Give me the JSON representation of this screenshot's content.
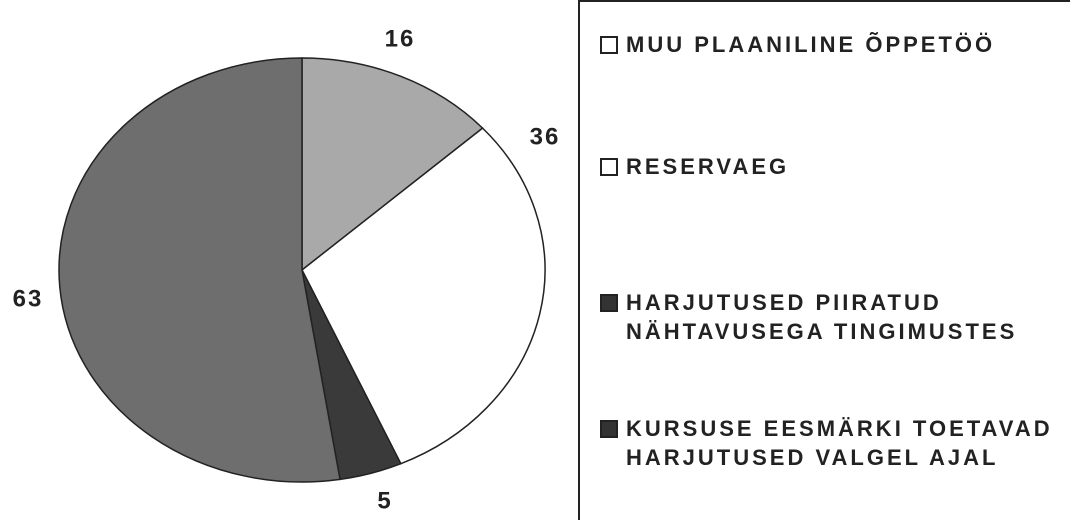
{
  "chart_data": {
    "type": "pie",
    "series": [
      {
        "name": "MUU PLAANILINE ÕPPETÖÖ",
        "color": "#a9a9a9",
        "values": [
          16
        ]
      },
      {
        "name": "RESERVAEG",
        "color": "#ffffff",
        "values": [
          36
        ]
      },
      {
        "name": "HARJUTUSED PIIRATUD NÄHTAVUSEGA TINGIMUSTES",
        "color": "#3a3a3a",
        "values": [
          5
        ]
      },
      {
        "name": "KURSUSE EESMÄRKI TOETAVAD HARJUTUSED VALGEL AJAL",
        "color": "#6e6e6e",
        "values": [
          63
        ]
      }
    ],
    "legend_swatches": [
      "#ffffff",
      "#ffffff",
      "#333333",
      "#333333"
    ]
  }
}
